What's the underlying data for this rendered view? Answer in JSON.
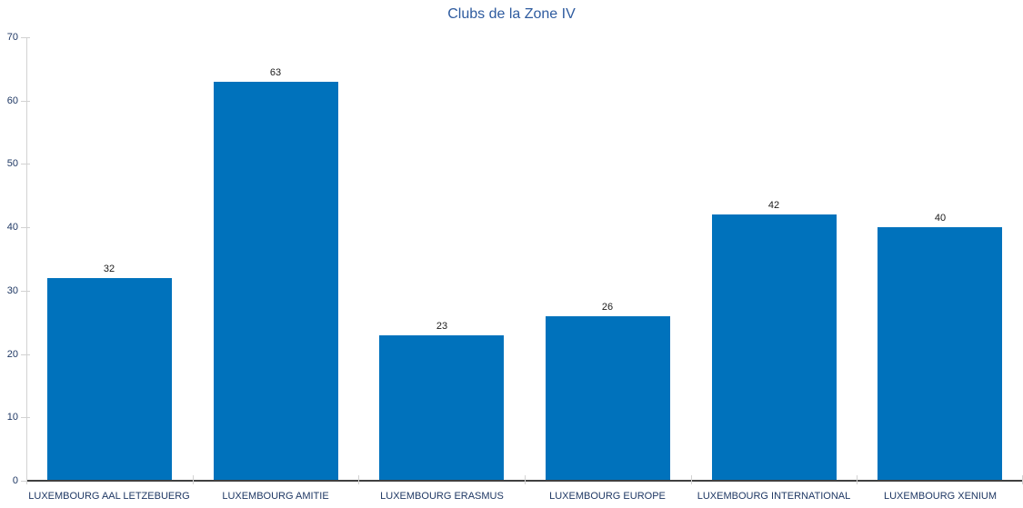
{
  "chart_data": {
    "type": "bar",
    "title": "Clubs de la Zone IV",
    "categories": [
      "LUXEMBOURG AAL LETZEBUERG",
      "LUXEMBOURG AMITIE",
      "LUXEMBOURG ERASMUS",
      "LUXEMBOURG EUROPE",
      "LUXEMBOURG INTERNATIONAL",
      "LUXEMBOURG XENIUM"
    ],
    "values": [
      32,
      63,
      23,
      26,
      42,
      40
    ],
    "data_labels": [
      "32",
      "63",
      "23",
      "26",
      "42",
      "40"
    ],
    "xlabel": "",
    "ylabel": "",
    "ylim": [
      0,
      70
    ],
    "ytick_step": 10,
    "yticks": [
      "0",
      "10",
      "20",
      "30",
      "40",
      "50",
      "60",
      "70"
    ],
    "grid": false,
    "legend": false,
    "series_count": 1
  },
  "colors": {
    "bar_fill": "#0072BC",
    "title_text": "#2E5B9F",
    "axis_label_text": "#1F3864",
    "value_label_text": "#1A1A1A",
    "axis_line_light": "#D2D2D2",
    "axis_line_dark": "#404040"
  }
}
